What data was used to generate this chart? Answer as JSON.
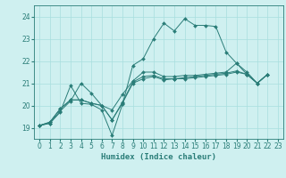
{
  "xlabel": "Humidex (Indice chaleur)",
  "bg_color": "#cff0f0",
  "line_color": "#2a7d78",
  "grid_color": "#a8dede",
  "xlim": [
    -0.5,
    23.5
  ],
  "ylim": [
    18.5,
    24.5
  ],
  "yticks": [
    19,
    20,
    21,
    22,
    23,
    24
  ],
  "xticks": [
    0,
    1,
    2,
    3,
    4,
    5,
    6,
    7,
    8,
    9,
    10,
    11,
    12,
    13,
    14,
    15,
    16,
    17,
    18,
    19,
    20,
    21,
    22,
    23
  ],
  "series": [
    [
      19.1,
      19.2,
      19.7,
      20.9,
      20.1,
      20.05,
      19.8,
      18.65,
      20.05,
      21.8,
      22.1,
      23.0,
      23.7,
      23.35,
      23.9,
      23.6,
      23.6,
      23.55,
      22.4,
      21.9,
      21.5,
      21.0,
      21.4
    ],
    [
      19.1,
      19.2,
      19.75,
      20.2,
      21.0,
      20.55,
      20.0,
      19.8,
      20.5,
      21.1,
      21.5,
      21.5,
      21.3,
      21.3,
      21.35,
      21.35,
      21.4,
      21.45,
      21.5,
      21.9,
      21.4,
      21.0,
      21.4
    ],
    [
      19.1,
      19.25,
      19.85,
      20.25,
      20.25,
      20.1,
      20.0,
      19.35,
      20.15,
      21.05,
      21.3,
      21.35,
      21.2,
      21.2,
      21.25,
      21.3,
      21.35,
      21.4,
      21.45,
      21.55,
      21.4,
      21.0,
      21.4
    ],
    [
      19.1,
      19.25,
      19.85,
      20.25,
      20.25,
      20.1,
      20.0,
      19.35,
      20.1,
      21.0,
      21.2,
      21.3,
      21.15,
      21.2,
      21.2,
      21.25,
      21.3,
      21.35,
      21.4,
      21.5,
      21.4,
      21.0,
      21.4
    ]
  ]
}
